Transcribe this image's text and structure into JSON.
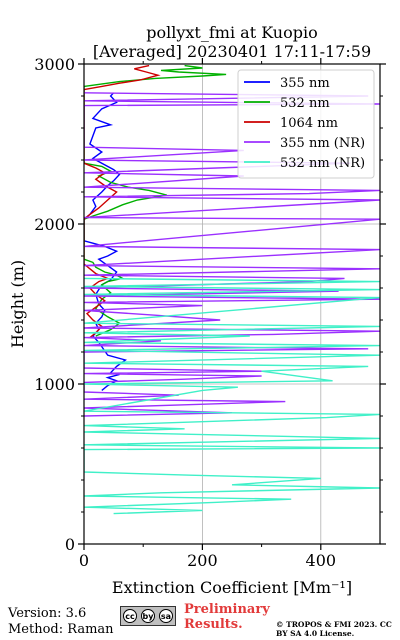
{
  "chart_data": {
    "type": "line",
    "title_line1": "pollyxt_fmi at Kuopio",
    "title_line2": "[Averaged] 20230401 17:11-17:59",
    "xlabel": "Extinction Coefficient [Mm⁻¹]",
    "ylabel": "Height (m)",
    "xlim": [
      0,
      500
    ],
    "ylim": [
      0,
      3000
    ],
    "xticks": [
      0,
      200,
      400
    ],
    "yticks": [
      0,
      1000,
      2000,
      3000
    ],
    "grid": true,
    "legend_position": "top-right",
    "series": [
      {
        "name": "355 nm",
        "color": "#0000ff",
        "points": [
          [
            30,
            960
          ],
          [
            40,
            990
          ],
          [
            55,
            1020
          ],
          [
            40,
            1040
          ],
          [
            60,
            1060
          ],
          [
            45,
            1070
          ],
          [
            55,
            1110
          ],
          [
            70,
            1150
          ],
          [
            40,
            1180
          ],
          [
            25,
            1260
          ],
          [
            15,
            1300
          ],
          [
            25,
            1340
          ],
          [
            20,
            1380
          ],
          [
            30,
            1420
          ],
          [
            35,
            1460
          ],
          [
            25,
            1500
          ],
          [
            20,
            1560
          ],
          [
            30,
            1620
          ],
          [
            45,
            1650
          ],
          [
            55,
            1700
          ],
          [
            40,
            1740
          ],
          [
            25,
            1780
          ],
          [
            40,
            1800
          ],
          [
            55,
            1830
          ],
          [
            35,
            1860
          ],
          [
            15,
            1880
          ],
          [
            0,
            1895
          ],
          [
            0,
            2030
          ],
          [
            10,
            2060
          ],
          [
            20,
            2110
          ],
          [
            15,
            2150
          ],
          [
            30,
            2200
          ],
          [
            40,
            2240
          ],
          [
            50,
            2270
          ],
          [
            60,
            2310
          ],
          [
            50,
            2340
          ],
          [
            30,
            2380
          ],
          [
            15,
            2410
          ],
          [
            30,
            2450
          ],
          [
            10,
            2500
          ],
          [
            20,
            2600
          ],
          [
            45,
            2620
          ],
          [
            15,
            2660
          ],
          [
            30,
            2720
          ],
          [
            55,
            2760
          ],
          [
            45,
            2800
          ],
          [
            50,
            2820
          ]
        ]
      },
      {
        "name": "532 nm",
        "color": "#00b000",
        "points": [
          [
            20,
            1300
          ],
          [
            45,
            1340
          ],
          [
            60,
            1380
          ],
          [
            40,
            1420
          ],
          [
            20,
            1470
          ],
          [
            30,
            1530
          ],
          [
            45,
            1570
          ],
          [
            30,
            1620
          ],
          [
            40,
            1640
          ],
          [
            65,
            1660
          ],
          [
            55,
            1680
          ],
          [
            35,
            1700
          ],
          [
            20,
            1730
          ],
          [
            15,
            1760
          ],
          [
            0,
            1780
          ],
          [
            0,
            2030
          ],
          [
            15,
            2050
          ],
          [
            40,
            2080
          ],
          [
            65,
            2120
          ],
          [
            90,
            2150
          ],
          [
            140,
            2180
          ],
          [
            110,
            2210
          ],
          [
            75,
            2230
          ],
          [
            45,
            2260
          ],
          [
            25,
            2300
          ],
          [
            45,
            2330
          ],
          [
            30,
            2360
          ],
          [
            0,
            2380
          ],
          [
            0,
            2860
          ],
          [
            20,
            2870
          ],
          [
            60,
            2890
          ],
          [
            120,
            2910
          ],
          [
            200,
            2925
          ],
          [
            240,
            2935
          ],
          [
            160,
            2950
          ],
          [
            130,
            2960
          ],
          [
            200,
            2975
          ],
          [
            170,
            2990
          ]
        ]
      },
      {
        "name": "1064 nm",
        "color": "#cc0000",
        "points": [
          [
            10,
            1290
          ],
          [
            20,
            1320
          ],
          [
            30,
            1360
          ],
          [
            15,
            1400
          ],
          [
            5,
            1440
          ],
          [
            20,
            1480
          ],
          [
            35,
            1520
          ],
          [
            20,
            1560
          ],
          [
            10,
            1600
          ],
          [
            25,
            1640
          ],
          [
            40,
            1660
          ],
          [
            20,
            1690
          ],
          [
            10,
            1720
          ],
          [
            0,
            1750
          ],
          [
            0,
            2030
          ],
          [
            10,
            2060
          ],
          [
            25,
            2100
          ],
          [
            40,
            2150
          ],
          [
            55,
            2200
          ],
          [
            35,
            2240
          ],
          [
            20,
            2280
          ],
          [
            35,
            2320
          ],
          [
            20,
            2350
          ],
          [
            0,
            2380
          ],
          [
            0,
            2840
          ],
          [
            30,
            2860
          ],
          [
            60,
            2880
          ],
          [
            95,
            2900
          ],
          [
            125,
            2930
          ],
          [
            105,
            2950
          ],
          [
            85,
            2970
          ],
          [
            110,
            2990
          ]
        ]
      },
      {
        "name": "355 nm (NR)",
        "color": "#9b30ff",
        "points": [
          [
            0,
            800
          ],
          [
            250,
            820
          ],
          [
            0,
            850
          ],
          [
            170,
            870
          ],
          [
            340,
            890
          ],
          [
            0,
            905
          ],
          [
            160,
            930
          ],
          [
            0,
            950
          ],
          [
            0,
            1010
          ],
          [
            170,
            1030
          ],
          [
            300,
            1050
          ],
          [
            0,
            1065
          ],
          [
            300,
            1080
          ],
          [
            0,
            1100
          ],
          [
            0,
            1200
          ],
          [
            480,
            1220
          ],
          [
            0,
            1240
          ],
          [
            130,
            1270
          ],
          [
            0,
            1290
          ],
          [
            320,
            1310
          ],
          [
            500,
            1330
          ],
          [
            0,
            1350
          ],
          [
            230,
            1400
          ],
          [
            120,
            1430
          ],
          [
            0,
            1460
          ],
          [
            200,
            1490
          ],
          [
            0,
            1510
          ],
          [
            500,
            1530
          ],
          [
            0,
            1550
          ],
          [
            430,
            1580
          ],
          [
            0,
            1600
          ],
          [
            380,
            1640
          ],
          [
            440,
            1660
          ],
          [
            0,
            1680
          ],
          [
            500,
            1720
          ],
          [
            0,
            1740
          ],
          [
            500,
            1840
          ],
          [
            0,
            1860
          ],
          [
            500,
            2030
          ],
          [
            0,
            2040
          ],
          [
            500,
            2150
          ],
          [
            0,
            2170
          ],
          [
            380,
            2190
          ],
          [
            500,
            2210
          ],
          [
            0,
            2230
          ],
          [
            270,
            2300
          ],
          [
            0,
            2320
          ],
          [
            450,
            2380
          ],
          [
            0,
            2400
          ],
          [
            270,
            2460
          ],
          [
            0,
            2480
          ],
          [
            0,
            2740
          ],
          [
            500,
            2750
          ],
          [
            0,
            2770
          ],
          [
            480,
            2800
          ],
          [
            0,
            2820
          ]
        ]
      },
      {
        "name": "532 nm (NR)",
        "color": "#40f0c8",
        "points": [
          [
            50,
            190
          ],
          [
            200,
            210
          ],
          [
            0,
            230
          ],
          [
            220,
            260
          ],
          [
            350,
            280
          ],
          [
            0,
            300
          ],
          [
            130,
            320
          ],
          [
            500,
            350
          ],
          [
            250,
            370
          ],
          [
            400,
            410
          ],
          [
            180,
            430
          ],
          [
            0,
            450
          ],
          [
            0,
            590
          ],
          [
            500,
            600
          ],
          [
            0,
            620
          ],
          [
            250,
            640
          ],
          [
            500,
            660
          ],
          [
            0,
            700
          ],
          [
            170,
            720
          ],
          [
            0,
            740
          ],
          [
            410,
            790
          ],
          [
            500,
            810
          ],
          [
            0,
            830
          ],
          [
            200,
            960
          ],
          [
            260,
            980
          ],
          [
            0,
            1000
          ],
          [
            420,
            1020
          ],
          [
            300,
            1080
          ],
          [
            480,
            1110
          ],
          [
            0,
            1130
          ],
          [
            500,
            1180
          ],
          [
            0,
            1210
          ],
          [
            500,
            1240
          ],
          [
            0,
            1260
          ],
          [
            280,
            1300
          ],
          [
            0,
            1320
          ],
          [
            500,
            1360
          ],
          [
            0,
            1380
          ],
          [
            500,
            1540
          ],
          [
            0,
            1560
          ],
          [
            500,
            1590
          ],
          [
            0,
            1610
          ],
          [
            500,
            1640
          ],
          [
            0,
            1660
          ]
        ]
      }
    ]
  },
  "footer": {
    "version": "Version: 3.6",
    "method": "Method: Raman",
    "preliminary": "Preliminary Results.",
    "copyright": "© TROPOS & FMI 2023. CC BY SA 4.0 License.",
    "license_icons": [
      "cc",
      "by",
      "sa"
    ]
  }
}
